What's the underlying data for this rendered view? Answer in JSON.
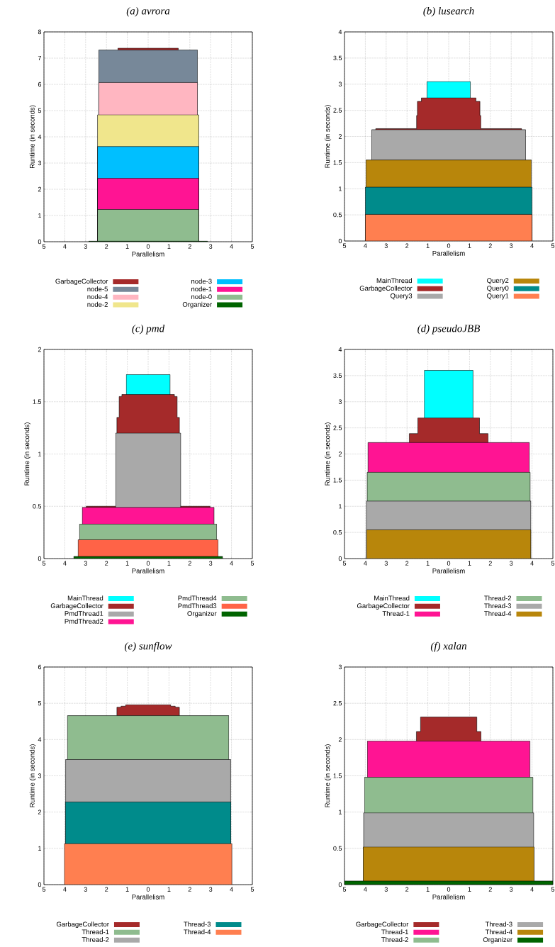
{
  "chart_data": [
    {
      "type": "area",
      "title": "(a) avrora",
      "xlabel": "Parallelism",
      "ylabel": "Runtime (in seconds)",
      "xlim": [
        -5,
        5
      ],
      "ylim": [
        0,
        8
      ],
      "xticks": [
        {
          "value": -5,
          "label": "5"
        },
        {
          "value": -4,
          "label": "4"
        },
        {
          "value": -3,
          "label": "3"
        },
        {
          "value": -2,
          "label": "2"
        },
        {
          "value": -1,
          "label": "1"
        },
        0,
        1,
        2,
        3,
        4,
        5
      ],
      "yticks": [
        0,
        1,
        2,
        3,
        4,
        5,
        6,
        7,
        8
      ],
      "grid": true,
      "legend": "bottom",
      "series": [
        {
          "name": "GarbageCollector",
          "color": "#a52a2a",
          "x": [
            -1.45,
            1.45
          ],
          "values": [
            7.38,
            7.38
          ]
        },
        {
          "name": "node-5",
          "color": "#778899",
          "x": [
            -2.37,
            2.37
          ],
          "values": [
            7.31,
            7.31
          ]
        },
        {
          "name": "node-4",
          "color": "#ffb6c1",
          "x": [
            -2.37,
            2.37
          ],
          "values": [
            6.07,
            6.07
          ]
        },
        {
          "name": "node-2",
          "color": "#f0e68c",
          "x": [
            -2.43,
            2.43
          ],
          "values": [
            4.84,
            4.84
          ]
        },
        {
          "name": "node-3",
          "color": "#00bfff",
          "x": [
            -2.43,
            2.43
          ],
          "values": [
            3.63,
            3.63
          ]
        },
        {
          "name": "node-1",
          "color": "#ff1493",
          "x": [
            -2.43,
            2.43
          ],
          "values": [
            2.42,
            2.42
          ]
        },
        {
          "name": "node-0",
          "color": "#8fbc8f",
          "x": [
            -2.43,
            2.43
          ],
          "values": [
            1.23,
            1.23
          ]
        },
        {
          "name": "Organizer",
          "color": "#006400",
          "x": [
            -2.85,
            2.85
          ],
          "values": [
            0.02,
            0.02
          ]
        }
      ]
    },
    {
      "type": "area",
      "title": "(b) lusearch",
      "xlabel": "Parallelism",
      "ylabel": "Runtime (in seconds)",
      "xlim": [
        -5,
        5
      ],
      "ylim": [
        0,
        4
      ],
      "xticks": [
        {
          "value": -5,
          "label": "5"
        },
        {
          "value": -4,
          "label": "4"
        },
        {
          "value": -3,
          "label": "3"
        },
        {
          "value": -2,
          "label": "2"
        },
        {
          "value": -1,
          "label": "1"
        },
        0,
        1,
        2,
        3,
        4,
        5
      ],
      "yticks": [
        0,
        0.5,
        1,
        1.5,
        2,
        2.5,
        3,
        3.5,
        4
      ],
      "grid": true,
      "legend": "bottom",
      "series": [
        {
          "name": "MainThread",
          "color": "#00ffff",
          "x": [
            -1.04,
            1.04
          ],
          "values": [
            3.05,
            3.05
          ]
        },
        {
          "name": "GarbageCollector",
          "color": "#a52a2a",
          "x": [
            -3.5,
            -1.54,
            -1.54,
            -1.5,
            -1.5,
            -1.31,
            -1.31,
            1.31,
            1.31,
            1.5,
            1.5,
            1.54,
            1.54,
            3.5
          ],
          "values": [
            2.15,
            2.15,
            2.4,
            2.4,
            2.67,
            2.67,
            2.74,
            2.74,
            2.67,
            2.67,
            2.4,
            2.4,
            2.15,
            2.15
          ]
        },
        {
          "name": "Query3",
          "color": "#a9a9a9",
          "x": [
            -3.69,
            3.69
          ],
          "values": [
            2.13,
            2.13
          ]
        },
        {
          "name": "Query2",
          "color": "#b8860b",
          "x": [
            -3.97,
            3.97
          ],
          "values": [
            1.55,
            1.55
          ]
        },
        {
          "name": "Query0",
          "color": "#008b8b",
          "x": [
            -4.0,
            4.0
          ],
          "values": [
            1.03,
            1.03
          ]
        },
        {
          "name": "Query1",
          "color": "#ff7f50",
          "x": [
            -4.0,
            4.0
          ],
          "values": [
            0.51,
            0.51
          ]
        }
      ]
    },
    {
      "type": "area",
      "title": "(c) pmd",
      "xlabel": "Parallelism",
      "ylabel": "Runtime (in seconds)",
      "xlim": [
        -5,
        5
      ],
      "ylim": [
        0,
        2
      ],
      "xticks": [
        {
          "value": -5,
          "label": "5"
        },
        {
          "value": -4,
          "label": "4"
        },
        {
          "value": -3,
          "label": "3"
        },
        {
          "value": -2,
          "label": "2"
        },
        {
          "value": -1,
          "label": "1"
        },
        0,
        1,
        2,
        3,
        4,
        5
      ],
      "yticks": [
        0,
        0.5,
        1,
        1.5,
        2
      ],
      "grid": true,
      "legend": "bottom",
      "series": [
        {
          "name": "MainThread",
          "color": "#00ffff",
          "x": [
            -1.05,
            1.05
          ],
          "values": [
            1.76,
            1.76
          ]
        },
        {
          "name": "GarbageCollector",
          "color": "#a52a2a",
          "x": [
            -2.97,
            -1.5,
            -1.5,
            -1.39,
            -1.39,
            -1.26,
            -1.26,
            1.26,
            1.26,
            1.39,
            1.39,
            1.5,
            1.5,
            2.97
          ],
          "values": [
            0.5,
            0.5,
            1.35,
            1.35,
            1.55,
            1.55,
            1.57,
            1.57,
            1.55,
            1.55,
            1.35,
            1.35,
            0.5,
            0.5
          ]
        },
        {
          "name": "PmdThread1",
          "color": "#a9a9a9",
          "x": [
            -1.56,
            1.56
          ],
          "values": [
            1.2,
            1.2
          ]
        },
        {
          "name": "PmdThread2",
          "color": "#ff1493",
          "x": [
            -3.16,
            3.16
          ],
          "values": [
            0.49,
            0.49
          ]
        },
        {
          "name": "PmdThread4",
          "color": "#8fbc8f",
          "x": [
            -3.29,
            3.29
          ],
          "values": [
            0.33,
            0.33
          ]
        },
        {
          "name": "PmdThread3",
          "color": "#ff6347",
          "x": [
            -3.36,
            3.36
          ],
          "values": [
            0.18,
            0.18
          ]
        },
        {
          "name": "Organizer",
          "color": "#006400",
          "x": [
            -3.57,
            3.57
          ],
          "values": [
            0.02,
            0.02
          ]
        }
      ]
    },
    {
      "type": "area",
      "title": "(d) pseudoJBB",
      "xlabel": "Parallelism",
      "ylabel": "Runtime (in seconds)",
      "xlim": [
        -5,
        5
      ],
      "ylim": [
        0,
        4
      ],
      "xticks": [
        {
          "value": -5,
          "label": "5"
        },
        {
          "value": -4,
          "label": "4"
        },
        {
          "value": -3,
          "label": "3"
        },
        {
          "value": -2,
          "label": "2"
        },
        {
          "value": -1,
          "label": "1"
        },
        0,
        1,
        2,
        3,
        4,
        5
      ],
      "yticks": [
        0,
        0.5,
        1,
        1.5,
        2,
        2.5,
        3,
        3.5,
        4
      ],
      "grid": true,
      "legend": "bottom",
      "series": [
        {
          "name": "MainThread",
          "color": "#00ffff",
          "x": [
            -1.17,
            1.17
          ],
          "values": [
            3.6,
            3.6
          ]
        },
        {
          "name": "GarbageCollector",
          "color": "#a52a2a",
          "x": [
            -1.89,
            -1.48,
            -1.48,
            1.48,
            1.48,
            1.89
          ],
          "values": [
            2.39,
            2.39,
            2.69,
            2.69,
            2.39,
            2.39
          ]
        },
        {
          "name": "Thread-1",
          "color": "#ff1493",
          "x": [
            -3.87,
            3.87
          ],
          "values": [
            2.22,
            2.22
          ]
        },
        {
          "name": "Thread-2",
          "color": "#8fbc8f",
          "x": [
            -3.91,
            3.91
          ],
          "values": [
            1.65,
            1.65
          ]
        },
        {
          "name": "Thread-3",
          "color": "#a9a9a9",
          "x": [
            -3.94,
            3.94
          ],
          "values": [
            1.1,
            1.1
          ]
        },
        {
          "name": "Thread-4",
          "color": "#b8860b",
          "x": [
            -3.94,
            3.94
          ],
          "values": [
            0.55,
            0.55
          ]
        }
      ]
    },
    {
      "type": "area",
      "title": "(e) sunflow",
      "xlabel": "Parallelism",
      "ylabel": "Runtime (in seconds)",
      "xlim": [
        -5,
        5
      ],
      "ylim": [
        0,
        6
      ],
      "xticks": [
        {
          "value": -5,
          "label": "5"
        },
        {
          "value": -4,
          "label": "4"
        },
        {
          "value": -3,
          "label": "3"
        },
        {
          "value": -2,
          "label": "2"
        },
        {
          "value": -1,
          "label": "1"
        },
        0,
        1,
        2,
        3,
        4,
        5
      ],
      "yticks": [
        0,
        1,
        2,
        3,
        4,
        5,
        6
      ],
      "grid": true,
      "legend": "bottom",
      "series": [
        {
          "name": "GarbageCollector",
          "color": "#a52a2a",
          "x": [
            -1.5,
            -1.3,
            -1.3,
            -1.08,
            -1.08,
            1.08,
            1.08,
            1.3,
            1.3,
            1.5
          ],
          "values": [
            4.89,
            4.89,
            4.92,
            4.92,
            4.96,
            4.96,
            4.92,
            4.92,
            4.89,
            4.89
          ]
        },
        {
          "name": "Thread-1",
          "color": "#8fbc8f",
          "x": [
            -3.87,
            3.87
          ],
          "values": [
            4.66,
            4.66
          ]
        },
        {
          "name": "Thread-2",
          "color": "#a9a9a9",
          "x": [
            -3.96,
            3.96
          ],
          "values": [
            3.45,
            3.45
          ]
        },
        {
          "name": "Thread-3",
          "color": "#008b8b",
          "x": [
            -3.97,
            3.97
          ],
          "values": [
            2.28,
            2.28
          ]
        },
        {
          "name": "Thread-4",
          "color": "#ff7f50",
          "x": [
            -4.02,
            4.02
          ],
          "values": [
            1.13,
            1.13
          ]
        }
      ]
    },
    {
      "type": "area",
      "title": "(f) xalan",
      "xlabel": "Parallelism",
      "ylabel": "Runtime (in seconds)",
      "xlim": [
        -5,
        5
      ],
      "ylim": [
        0,
        3
      ],
      "xticks": [
        {
          "value": -5,
          "label": "5"
        },
        {
          "value": -4,
          "label": "4"
        },
        {
          "value": -3,
          "label": "3"
        },
        {
          "value": -2,
          "label": "2"
        },
        {
          "value": -1,
          "label": "1"
        },
        0,
        1,
        2,
        3,
        4,
        5
      ],
      "yticks": [
        0,
        0.5,
        1,
        1.5,
        2,
        2.5,
        3
      ],
      "grid": true,
      "legend": "bottom",
      "series": [
        {
          "name": "GarbageCollector",
          "color": "#a52a2a",
          "x": [
            -1.55,
            -1.35,
            -1.35,
            1.35,
            1.35,
            1.55
          ],
          "values": [
            2.11,
            2.11,
            2.31,
            2.31,
            2.11,
            2.11
          ]
        },
        {
          "name": "Thread-1",
          "color": "#ff1493",
          "x": [
            -3.9,
            3.9
          ],
          "values": [
            1.98,
            1.98
          ]
        },
        {
          "name": "Thread-2",
          "color": "#8fbc8f",
          "x": [
            -4.04,
            4.04
          ],
          "values": [
            1.48,
            1.48
          ]
        },
        {
          "name": "Thread-3",
          "color": "#a9a9a9",
          "x": [
            -4.08,
            4.08
          ],
          "values": [
            0.99,
            0.99
          ]
        },
        {
          "name": "Thread-4",
          "color": "#b8860b",
          "x": [
            -4.1,
            4.1
          ],
          "values": [
            0.52,
            0.52
          ]
        },
        {
          "name": "Organizer",
          "color": "#006400",
          "x": [
            -5,
            5
          ],
          "values": [
            0.05,
            0.05
          ]
        }
      ]
    }
  ]
}
